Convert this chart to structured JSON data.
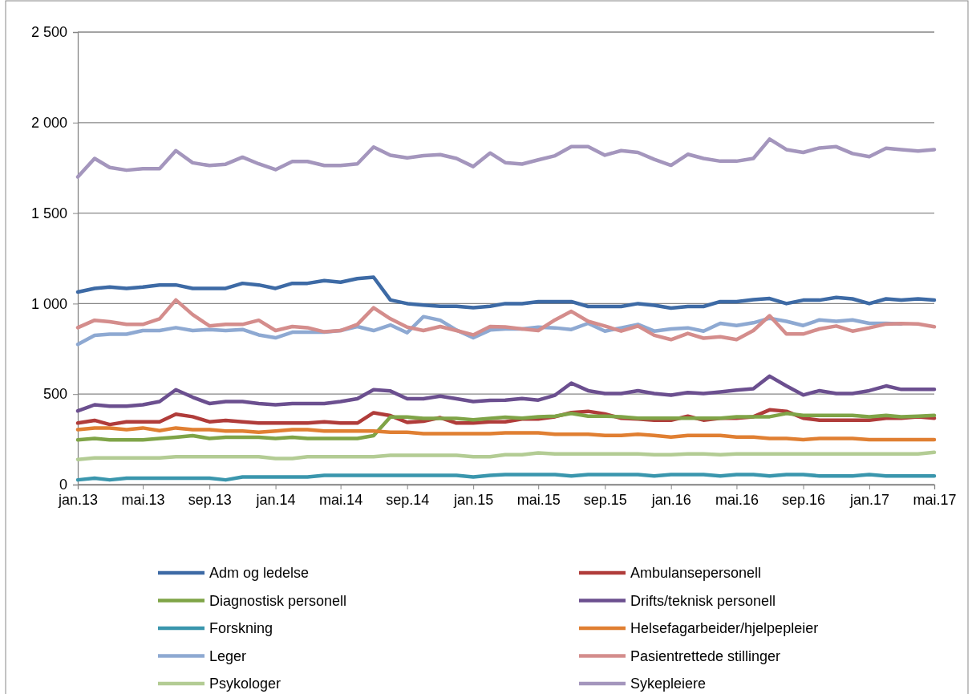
{
  "chart_data": {
    "type": "line",
    "xlim": [
      "2013-01",
      "2017-05"
    ],
    "ylim": [
      0,
      2500
    ],
    "xticks": [
      {
        "value": "2013-01",
        "label": "jan.13"
      },
      {
        "value": "2013-05",
        "label": "mai.13"
      },
      {
        "value": "2013-09",
        "label": "sep.13"
      },
      {
        "value": "2014-01",
        "label": "jan.14"
      },
      {
        "value": "2014-05",
        "label": "mai.14"
      },
      {
        "value": "2014-09",
        "label": "sep.14"
      },
      {
        "value": "2015-01",
        "label": "jan.15"
      },
      {
        "value": "2015-05",
        "label": "mai.15"
      },
      {
        "value": "2015-09",
        "label": "sep.15"
      },
      {
        "value": "2016-01",
        "label": "jan.16"
      },
      {
        "value": "2016-05",
        "label": "mai.16"
      },
      {
        "value": "2016-09",
        "label": "sep.16"
      },
      {
        "value": "2017-01",
        "label": "jan.17"
      },
      {
        "value": "2017-05",
        "label": "mai.17"
      }
    ],
    "yticks": [
      0,
      500,
      {
        "value": 1000,
        "label": "1 000"
      },
      {
        "value": 1500,
        "label": "1 500"
      },
      {
        "value": 2000,
        "label": "2 000"
      },
      {
        "value": 2500,
        "label": "2 500"
      }
    ],
    "grid": "y",
    "legend": "bottom",
    "marker": "none",
    "line_style": "solid",
    "x": [
      "2013-01",
      "2013-02",
      "2013-03",
      "2013-04",
      "2013-05",
      "2013-06",
      "2013-07",
      "2013-08",
      "2013-09",
      "2013-10",
      "2013-11",
      "2013-12",
      "2014-01",
      "2014-02",
      "2014-03",
      "2014-04",
      "2014-05",
      "2014-06",
      "2014-07",
      "2014-08",
      "2014-09",
      "2014-10",
      "2014-11",
      "2014-12",
      "2015-01",
      "2015-02",
      "2015-03",
      "2015-04",
      "2015-05",
      "2015-06",
      "2015-07",
      "2015-08",
      "2015-09",
      "2015-10",
      "2015-11",
      "2015-12",
      "2016-01",
      "2016-02",
      "2016-03",
      "2016-04",
      "2016-05",
      "2016-06",
      "2016-07",
      "2016-08",
      "2016-09",
      "2016-10",
      "2016-11",
      "2016-12",
      "2017-01",
      "2017-02",
      "2017-03",
      "2017-04",
      "2017-05"
    ],
    "series": [
      {
        "name": "Adm og ledelse",
        "color": "#3d6aa5",
        "values": [
          1064,
          1084,
          1092,
          1084,
          1092,
          1103,
          1103,
          1084,
          1084,
          1084,
          1112,
          1103,
          1084,
          1112,
          1112,
          1127,
          1118,
          1138,
          1146,
          1020,
          1000,
          992,
          985,
          985,
          977,
          985,
          1000,
          1000,
          1011,
          1011,
          1011,
          984,
          984,
          984,
          1000,
          991,
          975,
          984,
          984,
          1011,
          1011,
          1022,
          1028,
          1000,
          1019,
          1019,
          1034,
          1026,
          1000,
          1026,
          1019,
          1026,
          1019
        ]
      },
      {
        "name": "Ambulansepersonell",
        "color": "#b03c3a",
        "values": [
          340,
          355,
          332,
          347,
          347,
          347,
          389,
          375,
          347,
          355,
          347,
          340,
          340,
          340,
          340,
          347,
          340,
          340,
          397,
          381,
          344,
          350,
          370,
          340,
          340,
          347,
          347,
          362,
          362,
          375,
          398,
          405,
          390,
          367,
          362,
          356,
          356,
          378,
          356,
          367,
          367,
          375,
          413,
          405,
          367,
          356,
          356,
          356,
          356,
          367,
          367,
          375,
          367
        ]
      },
      {
        "name": "Diagnostisk personell",
        "color": "#7fa447",
        "values": [
          247,
          255,
          247,
          247,
          247,
          255,
          262,
          270,
          255,
          262,
          262,
          262,
          255,
          262,
          255,
          255,
          255,
          255,
          270,
          373,
          373,
          366,
          366,
          366,
          358,
          366,
          372,
          367,
          375,
          378,
          393,
          378,
          378,
          375,
          367,
          367,
          367,
          367,
          367,
          367,
          375,
          375,
          375,
          393,
          382,
          382,
          382,
          382,
          375,
          382,
          375,
          378,
          382
        ]
      },
      {
        "name": "Drifts/teknisk personell",
        "color": "#6b4f8f",
        "values": [
          407,
          441,
          433,
          433,
          441,
          459,
          524,
          483,
          448,
          459,
          459,
          448,
          441,
          448,
          448,
          448,
          459,
          474,
          524,
          517,
          474,
          474,
          489,
          474,
          459,
          465,
          467,
          475,
          467,
          494,
          561,
          519,
          503,
          503,
          519,
          503,
          494,
          509,
          503,
          512,
          522,
          530,
          599,
          545,
          495,
          519,
          503,
          503,
          519,
          545,
          526,
          526,
          526
        ]
      },
      {
        "name": "Forskning",
        "color": "#3a96ad",
        "values": [
          26,
          35,
          26,
          35,
          35,
          35,
          35,
          35,
          35,
          26,
          42,
          42,
          42,
          42,
          42,
          51,
          51,
          51,
          51,
          51,
          51,
          51,
          51,
          51,
          42,
          51,
          55,
          55,
          55,
          55,
          48,
          55,
          55,
          55,
          55,
          48,
          55,
          55,
          55,
          48,
          55,
          55,
          48,
          55,
          55,
          48,
          48,
          48,
          55,
          48,
          48,
          48,
          48
        ]
      },
      {
        "name": "Helsefagarbeider/hjelpepleier",
        "color": "#e07f32",
        "values": [
          304,
          313,
          313,
          304,
          313,
          298,
          313,
          304,
          304,
          296,
          296,
          289,
          296,
          304,
          304,
          296,
          296,
          296,
          296,
          289,
          289,
          281,
          281,
          281,
          281,
          281,
          286,
          286,
          286,
          278,
          278,
          278,
          271,
          271,
          278,
          271,
          263,
          271,
          271,
          271,
          263,
          263,
          255,
          255,
          248,
          255,
          255,
          255,
          248,
          248,
          248,
          248,
          248
        ]
      },
      {
        "name": "Leger",
        "color": "#8ea9d2",
        "values": [
          775,
          824,
          831,
          831,
          851,
          851,
          867,
          851,
          857,
          851,
          857,
          827,
          811,
          842,
          842,
          842,
          851,
          873,
          851,
          882,
          839,
          928,
          908,
          854,
          811,
          854,
          860,
          860,
          870,
          866,
          857,
          891,
          848,
          866,
          885,
          848,
          860,
          866,
          848,
          891,
          879,
          894,
          919,
          902,
          879,
          910,
          902,
          910,
          891,
          891,
          888,
          null,
          null
        ]
      },
      {
        "name": "Pasientrettede stillinger",
        "color": "#d48d8c",
        "values": [
          867,
          908,
          900,
          885,
          885,
          916,
          1020,
          939,
          877,
          885,
          885,
          908,
          851,
          873,
          867,
          844,
          851,
          885,
          977,
          916,
          870,
          851,
          873,
          851,
          827,
          873,
          871,
          860,
          851,
          910,
          957,
          902,
          876,
          848,
          876,
          825,
          801,
          835,
          809,
          817,
          801,
          851,
          933,
          832,
          832,
          860,
          876,
          848,
          866,
          887,
          890,
          888,
          872
        ]
      },
      {
        "name": "Psykologer",
        "color": "#b3cc94",
        "values": [
          139,
          147,
          147,
          147,
          147,
          147,
          154,
          154,
          154,
          154,
          154,
          154,
          144,
          144,
          154,
          154,
          154,
          154,
          154,
          162,
          162,
          162,
          162,
          162,
          154,
          154,
          165,
          165,
          175,
          170,
          170,
          170,
          170,
          170,
          170,
          165,
          165,
          170,
          170,
          165,
          170,
          170,
          170,
          170,
          170,
          170,
          170,
          170,
          170,
          170,
          170,
          170,
          178
        ]
      },
      {
        "name": "Sykepleiere",
        "color": "#a496bd",
        "values": [
          1700,
          1802,
          1752,
          1737,
          1745,
          1745,
          1845,
          1778,
          1763,
          1770,
          1809,
          1772,
          1740,
          1785,
          1785,
          1763,
          1763,
          1772,
          1865,
          1820,
          1805,
          1817,
          1823,
          1802,
          1757,
          1832,
          1779,
          1771,
          1794,
          1817,
          1867,
          1867,
          1820,
          1845,
          1835,
          1797,
          1764,
          1825,
          1802,
          1787,
          1787,
          1802,
          1909,
          1851,
          1835,
          1860,
          1867,
          1829,
          1812,
          1858,
          1851,
          1843,
          1851
        ]
      }
    ]
  }
}
